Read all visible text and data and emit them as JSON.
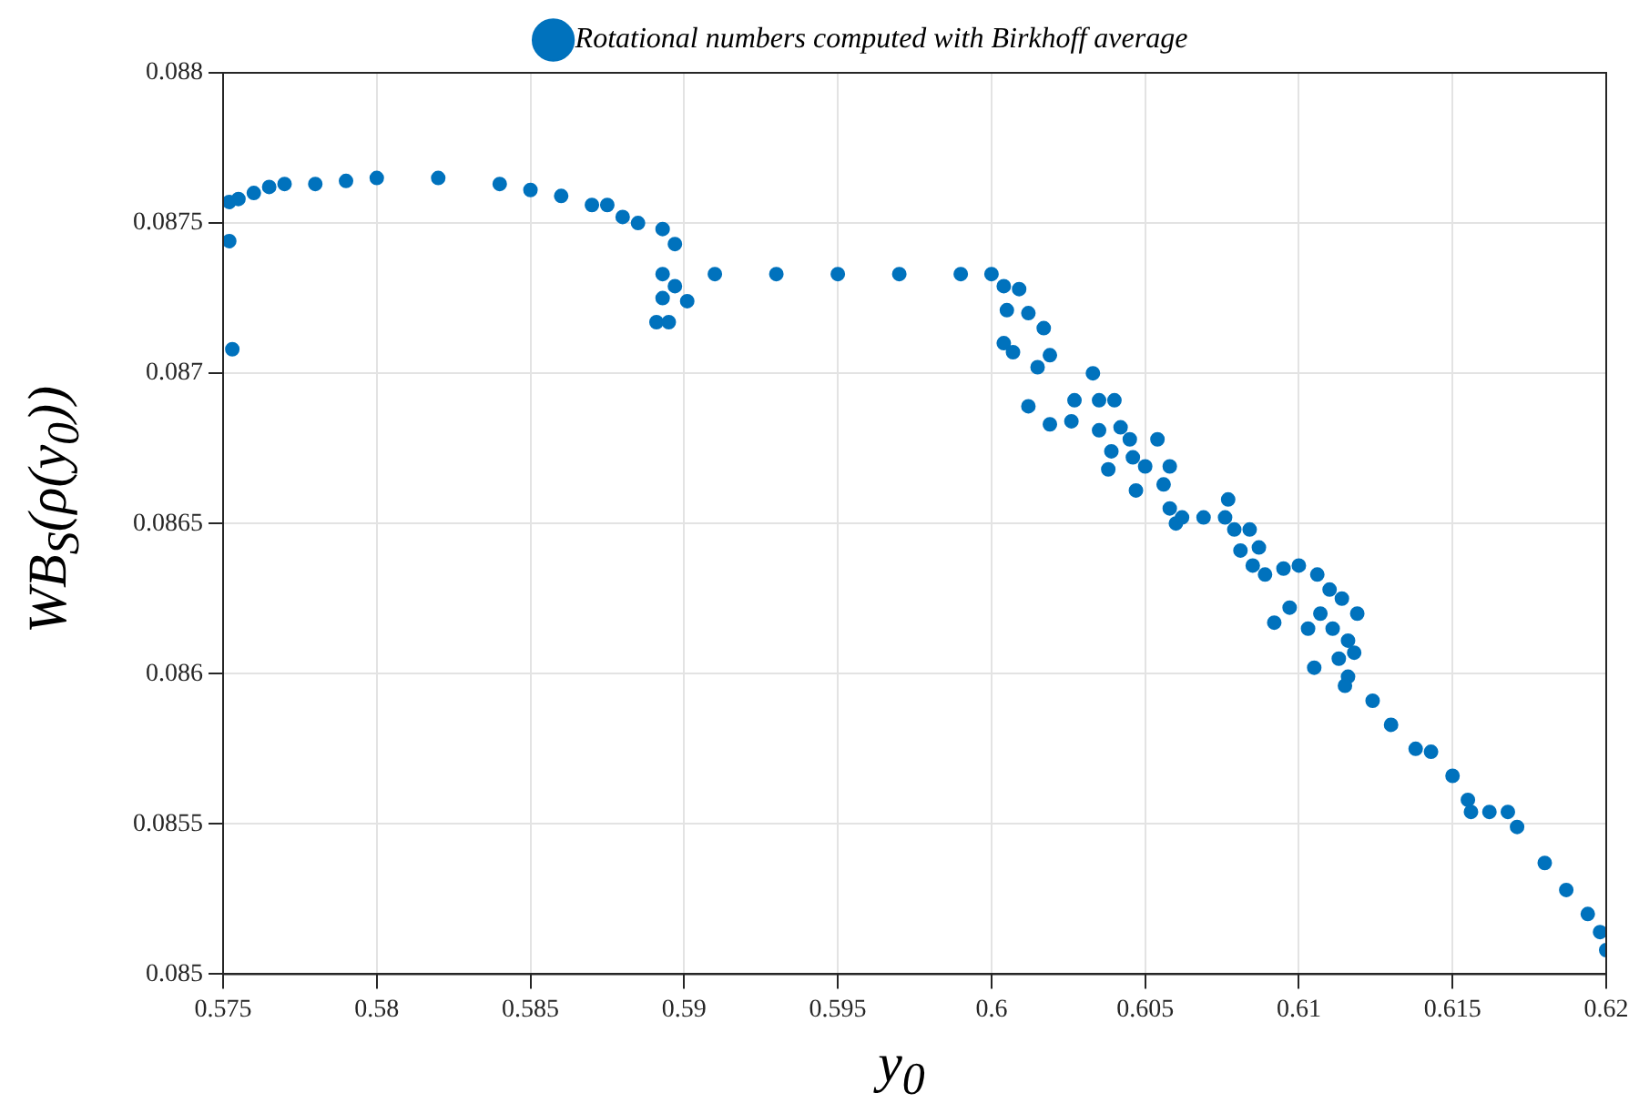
{
  "chart_data": {
    "type": "scatter",
    "xlabel": "y$_{0}$",
    "ylabel": "WB$_{S}$(ρ(y$_{0}$))",
    "x": [
      0.5752,
      0.5755,
      0.576,
      0.5765,
      0.577,
      0.578,
      0.579,
      0.58,
      0.582,
      0.584,
      0.585,
      0.586,
      0.587,
      0.5875,
      0.588,
      0.5885,
      0.5893,
      0.5752,
      0.5753,
      0.5897,
      0.5891,
      0.5895,
      0.5893,
      0.5901,
      0.5897,
      0.5893,
      0.591,
      0.593,
      0.595,
      0.597,
      0.599,
      0.6,
      0.6004,
      0.6009,
      0.6005,
      0.6012,
      0.6004,
      0.6017,
      0.6007,
      0.6019,
      0.6015,
      0.6033,
      0.6012,
      0.6019,
      0.6027,
      0.6026,
      0.6035,
      0.604,
      0.6035,
      0.6042,
      0.6039,
      0.6045,
      0.6054,
      0.6038,
      0.6046,
      0.605,
      0.6058,
      0.6047,
      0.6056,
      0.6058,
      0.606,
      0.6062,
      0.6069,
      0.6076,
      0.6077,
      0.6079,
      0.6084,
      0.6081,
      0.6087,
      0.6085,
      0.6089,
      0.6095,
      0.61,
      0.6106,
      0.6092,
      0.6097,
      0.6103,
      0.611,
      0.6114,
      0.6119,
      0.6107,
      0.6111,
      0.6116,
      0.6105,
      0.6113,
      0.6118,
      0.6116,
      0.6115,
      0.6124,
      0.613,
      0.6138,
      0.6143,
      0.615,
      0.6155,
      0.6156,
      0.6162,
      0.6168,
      0.6171,
      0.618,
      0.6187,
      0.6194,
      0.6198,
      0.62
    ],
    "series": [
      {
        "name": "Rotational numbers computed with Birkhoff average",
        "color": "#0072bd",
        "values": [
          0.08757,
          0.08758,
          0.0876,
          0.08762,
          0.08763,
          0.08763,
          0.08764,
          0.08765,
          0.08765,
          0.08763,
          0.08761,
          0.08759,
          0.08756,
          0.08756,
          0.08752,
          0.0875,
          0.08748,
          0.08744,
          0.08708,
          0.08743,
          0.08717,
          0.08717,
          0.08725,
          0.08724,
          0.08729,
          0.08733,
          0.08733,
          0.08733,
          0.08733,
          0.08733,
          0.08733,
          0.08733,
          0.08729,
          0.08728,
          0.08721,
          0.0872,
          0.0871,
          0.08715,
          0.08707,
          0.08706,
          0.08702,
          0.087,
          0.08689,
          0.08683,
          0.08691,
          0.08684,
          0.08691,
          0.08691,
          0.08681,
          0.08682,
          0.08674,
          0.08678,
          0.08678,
          0.08668,
          0.08672,
          0.08669,
          0.08669,
          0.08661,
          0.08663,
          0.08655,
          0.0865,
          0.08652,
          0.08652,
          0.08652,
          0.08658,
          0.08648,
          0.08648,
          0.08641,
          0.08642,
          0.08636,
          0.08633,
          0.08635,
          0.08636,
          0.08633,
          0.08617,
          0.08622,
          0.08615,
          0.08628,
          0.08625,
          0.0862,
          0.0862,
          0.08615,
          0.08611,
          0.08602,
          0.08605,
          0.08607,
          0.08599,
          0.08596,
          0.08591,
          0.08583,
          0.08575,
          0.08574,
          0.08566,
          0.08558,
          0.08554,
          0.08554,
          0.08554,
          0.08549,
          0.08537,
          0.08528,
          0.0852,
          0.08514,
          0.08508
        ]
      }
    ],
    "xlim": [
      0.575,
      0.62
    ],
    "xticks": [
      0.575,
      0.58,
      0.585,
      0.59,
      0.595,
      0.6,
      0.605,
      0.61,
      0.615,
      0.62
    ],
    "ylim": [
      0.085,
      0.088
    ],
    "yticks": [
      0.085,
      0.0855,
      0.086,
      0.0865,
      0.087,
      0.0875,
      0.088
    ],
    "grid": true,
    "legend": "top",
    "marker": "circle"
  }
}
